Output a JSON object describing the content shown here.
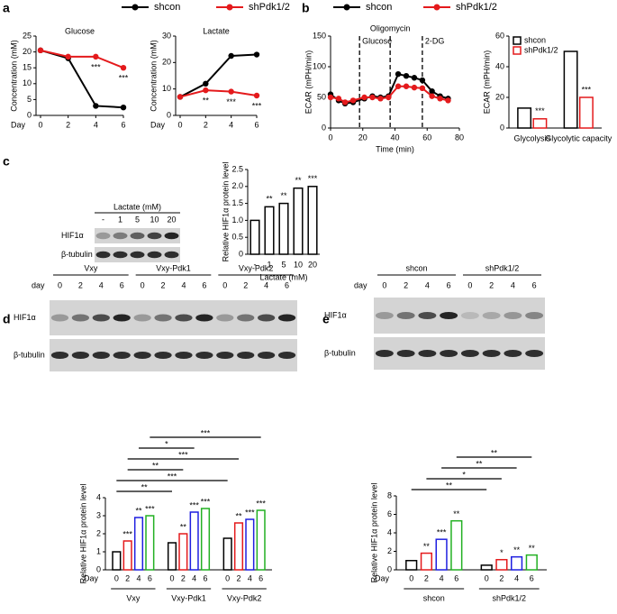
{
  "panels": [
    "a",
    "b",
    "c",
    "d",
    "e"
  ],
  "blots": [
    {
      "header": "Lactate (mM)",
      "lanes": [
        "-",
        "1",
        "5",
        "10",
        "20"
      ],
      "rows": [
        "HIF1α",
        "β-tubulin"
      ]
    },
    {
      "lane_header": "day",
      "groups": [
        "Vxy",
        "Vxy-Pdk1",
        "Vxy-Pdk2"
      ],
      "lanes": [
        "0",
        "2",
        "4",
        "6"
      ],
      "rows": [
        "HIF1α",
        "β-tubulin"
      ]
    },
    {
      "lane_header": "day",
      "groups": [
        "shcon",
        "shPdk1/2"
      ],
      "lanes": [
        "0",
        "2",
        "4",
        "6"
      ],
      "rows": [
        "HIF1α",
        "β-tubulin"
      ]
    }
  ],
  "chart_data": [
    {
      "type": "line",
      "title": "Glucose",
      "ylabel": "Concentration (mM)",
      "xlabel": "Day",
      "x": [
        0,
        2,
        4,
        6
      ],
      "xlim": [
        0,
        6
      ],
      "xticks": [
        0,
        2,
        4,
        6
      ],
      "ylim": [
        0,
        25
      ],
      "yticks": [
        0,
        5,
        10,
        15,
        20,
        25
      ],
      "series": [
        {
          "name": "shcon",
          "color": "#000000",
          "values": [
            20.5,
            18,
            3,
            2.5
          ]
        },
        {
          "name": "shPdk1/2",
          "color": "#e41a1c",
          "values": [
            20.5,
            18.5,
            18.5,
            15
          ],
          "significance": [
            null,
            null,
            "***",
            "***"
          ]
        }
      ]
    },
    {
      "type": "line",
      "title": "Lactate",
      "ylabel": "Concentration (mM)",
      "xlabel": "Day",
      "x": [
        0,
        2,
        4,
        6
      ],
      "xlim": [
        0,
        6
      ],
      "xticks": [
        0,
        2,
        4,
        6
      ],
      "ylim": [
        0,
        30
      ],
      "yticks": [
        0,
        10,
        20,
        30
      ],
      "series": [
        {
          "name": "shcon",
          "color": "#000000",
          "values": [
            7,
            12,
            22.5,
            23
          ]
        },
        {
          "name": "shPdk1/2",
          "color": "#e41a1c",
          "values": [
            7,
            9.5,
            9,
            7.5
          ],
          "significance": [
            null,
            "**",
            "***",
            "***"
          ]
        }
      ]
    },
    {
      "type": "line",
      "xlabel": "Time (min)",
      "ylabel": "ECAR (mPH/min)",
      "x": [
        0,
        5,
        9,
        14,
        21,
        26,
        31,
        36,
        42,
        47,
        52,
        57,
        63,
        68,
        73
      ],
      "xlim": [
        0,
        80
      ],
      "xticks": [
        0,
        20,
        40,
        60,
        80
      ],
      "ylim": [
        0,
        150
      ],
      "yticks": [
        0,
        50,
        100,
        150
      ],
      "injections": [
        {
          "label": "Glucose",
          "x": 18
        },
        {
          "label": "Oligomycin",
          "x": 37
        },
        {
          "label": "2-DG",
          "x": 57
        }
      ],
      "series": [
        {
          "name": "shcon",
          "color": "#000000",
          "values": [
            55,
            45,
            40,
            42,
            48,
            52,
            50,
            52,
            88,
            85,
            82,
            78,
            60,
            52,
            48
          ]
        },
        {
          "name": "shPdk1/2",
          "color": "#e41a1c",
          "values": [
            50,
            48,
            42,
            45,
            50,
            50,
            48,
            50,
            68,
            68,
            66,
            65,
            52,
            48,
            45
          ]
        }
      ]
    },
    {
      "type": "bar",
      "ylabel": "ECAR (mPH/min)",
      "categories": [
        "Glycolysis",
        "Glycolytic capacity"
      ],
      "ylim": [
        0,
        60
      ],
      "yticks": [
        0,
        20,
        40,
        60
      ],
      "legend": "upper left",
      "series": [
        {
          "name": "shcon",
          "color": "#000000",
          "values": [
            13,
            50
          ]
        },
        {
          "name": "shPdk1/2",
          "color": "#e41a1c",
          "values": [
            6,
            20
          ],
          "significance": [
            "***",
            "***"
          ]
        }
      ]
    },
    {
      "type": "bar",
      "ylabel": "Relative HIF1α protein level",
      "xlabel": "Lactate (mM)",
      "categories": [
        "-",
        "1",
        "5",
        "10",
        "20"
      ],
      "values": [
        1,
        1.4,
        1.5,
        1.95,
        2.0
      ],
      "color": "#000000",
      "significance": [
        null,
        "**",
        "**",
        "**",
        "***"
      ],
      "ylim": [
        0,
        2.5
      ],
      "yticks": [
        0,
        0.5,
        {
          "value": 1,
          "label": "1.0"
        },
        1.5,
        {
          "value": 2,
          "label": "2.0"
        },
        2.5
      ]
    },
    {
      "type": "grouped_bar",
      "ylabel": "Relative HIF1α protein level",
      "xlabel": "Day",
      "categories": [
        "0",
        "2",
        "4",
        "6"
      ],
      "colors": [
        "#000000",
        "#e41a1c",
        "#1f1fe0",
        "#22b022"
      ],
      "ylim": [
        0,
        4
      ],
      "yticks": [
        0,
        1,
        2,
        3,
        4
      ],
      "groups": [
        {
          "name": "Vxy",
          "values": [
            1,
            1.6,
            2.9,
            3.0
          ],
          "significance": [
            null,
            "***",
            "**",
            "***"
          ]
        },
        {
          "name": "Vxy-Pdk1",
          "values": [
            1.5,
            2.0,
            3.2,
            3.4
          ],
          "significance": [
            null,
            "**",
            "***",
            "***"
          ]
        },
        {
          "name": "Vxy-Pdk2",
          "values": [
            1.75,
            2.6,
            2.8,
            3.3
          ],
          "significance": [
            null,
            "**",
            "***",
            "***"
          ]
        }
      ],
      "brackets": [
        {
          "label": "**",
          "from": 0,
          "to": 4
        },
        {
          "label": "***",
          "from": 0,
          "to": 8
        },
        {
          "label": "**",
          "from": 1,
          "to": 5
        },
        {
          "label": "***",
          "from": 1,
          "to": 9
        },
        {
          "label": "*",
          "from": 2,
          "to": 6
        },
        {
          "label": "***",
          "from": 3,
          "to": 11
        }
      ]
    },
    {
      "type": "grouped_bar",
      "ylabel": "Relative HIF1α protein level",
      "xlabel": "Day",
      "categories": [
        "0",
        "2",
        "4",
        "6"
      ],
      "colors": [
        "#000000",
        "#e41a1c",
        "#1f1fe0",
        "#22b022"
      ],
      "ylim": [
        0,
        8
      ],
      "yticks": [
        0,
        2,
        4,
        6,
        8
      ],
      "groups": [
        {
          "name": "shcon",
          "values": [
            1,
            1.8,
            3.3,
            5.3
          ],
          "significance": [
            null,
            "**",
            "***",
            "**"
          ]
        },
        {
          "name": "shPdk1/2",
          "values": [
            0.5,
            1.1,
            1.4,
            1.6
          ],
          "significance": [
            null,
            "*",
            "**",
            "**"
          ]
        }
      ],
      "brackets": [
        {
          "label": "**",
          "from": 0,
          "to": 4
        },
        {
          "label": "*",
          "from": 1,
          "to": 5
        },
        {
          "label": "**",
          "from": 2,
          "to": 6
        },
        {
          "label": "**",
          "from": 3,
          "to": 7
        }
      ]
    }
  ]
}
